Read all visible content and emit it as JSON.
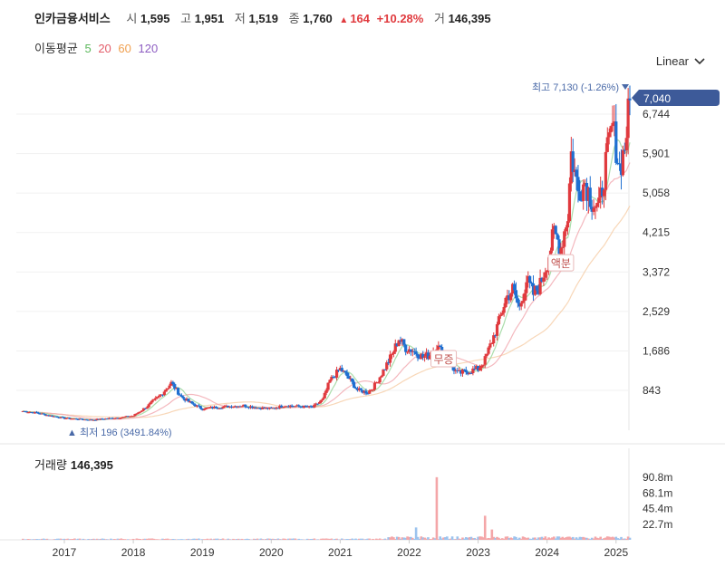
{
  "header": {
    "name": "인카금융서비스",
    "open_label": "시",
    "open": "1,595",
    "high_label": "고",
    "high": "1,951",
    "low_label": "저",
    "low": "1,519",
    "close_label": "종",
    "close": "1,760",
    "change_arrow": "▲",
    "change": "164",
    "change_pct": "+10.28%",
    "volume_label": "거",
    "volume": "146,395"
  },
  "moving_average": {
    "label": "이동평균",
    "periods": [
      {
        "value": "5",
        "color": "#5cb85c"
      },
      {
        "value": "20",
        "color": "#e35d6a"
      },
      {
        "value": "60",
        "color": "#f0a050"
      },
      {
        "value": "120",
        "color": "#8e5ec2"
      }
    ]
  },
  "scale_selector": {
    "value": "Linear"
  },
  "volume_panel": {
    "label": "거래량",
    "value": "146,395"
  },
  "colors": {
    "up": "#e03a3e",
    "down": "#1f6fd1",
    "badge": "#3d5a99"
  },
  "chart_data": {
    "type": "candlestick",
    "y_ticks": [
      "6,744",
      "5,901",
      "5,058",
      "4,215",
      "3,372",
      "2,529",
      "1,686",
      "843"
    ],
    "y_tick_values": [
      6744,
      5901,
      5058,
      4215,
      3372,
      2529,
      1686,
      843
    ],
    "x_ticks": [
      "2017",
      "2018",
      "2019",
      "2020",
      "2021",
      "2022",
      "2023",
      "2024",
      "2025"
    ],
    "x_tick_years": [
      2017,
      2018,
      2019,
      2020,
      2021,
      2022,
      2023,
      2024,
      2025
    ],
    "last_price": "7,040",
    "high_annotation": "최고 7,130 (-1.26%)",
    "low_annotation": "▲ 최저 196 (3491.84%)",
    "event_labels": [
      {
        "text": "무증",
        "date": 2022.5,
        "price": 1500
      },
      {
        "text": "액분",
        "date": 2024.2,
        "price": 3550
      }
    ],
    "volume_ticks": [
      "90.8m",
      "68.1m",
      "45.4m",
      "22.7m"
    ],
    "volume_tick_values": [
      90.8,
      68.1,
      45.4,
      22.7
    ],
    "series_close": [
      [
        2016.4,
        400
      ],
      [
        2016.6,
        360
      ],
      [
        2016.8,
        300
      ],
      [
        2017.0,
        250
      ],
      [
        2017.2,
        230
      ],
      [
        2017.4,
        210
      ],
      [
        2017.6,
        240
      ],
      [
        2017.8,
        260
      ],
      [
        2018.0,
        300
      ],
      [
        2018.2,
        500
      ],
      [
        2018.4,
        750
      ],
      [
        2018.55,
        1000
      ],
      [
        2018.7,
        700
      ],
      [
        2018.85,
        560
      ],
      [
        2019.0,
        450
      ],
      [
        2019.2,
        480
      ],
      [
        2019.4,
        500
      ],
      [
        2019.6,
        520
      ],
      [
        2019.8,
        470
      ],
      [
        2020.0,
        450
      ],
      [
        2020.2,
        520
      ],
      [
        2020.4,
        500
      ],
      [
        2020.6,
        480
      ],
      [
        2020.75,
        650
      ],
      [
        2020.85,
        1050
      ],
      [
        2021.0,
        1300
      ],
      [
        2021.1,
        1150
      ],
      [
        2021.25,
        850
      ],
      [
        2021.4,
        800
      ],
      [
        2021.5,
        950
      ],
      [
        2021.6,
        1200
      ],
      [
        2021.75,
        1600
      ],
      [
        2021.85,
        1950
      ],
      [
        2021.95,
        1750
      ],
      [
        2022.05,
        1700
      ],
      [
        2022.2,
        1550
      ],
      [
        2022.3,
        1600
      ],
      [
        2022.4,
        1800
      ],
      [
        2022.55,
        1500
      ],
      [
        2022.7,
        1200
      ],
      [
        2022.85,
        1250
      ],
      [
        2023.0,
        1300
      ],
      [
        2023.1,
        1500
      ],
      [
        2023.2,
        1900
      ],
      [
        2023.3,
        2300
      ],
      [
        2023.4,
        2800
      ],
      [
        2023.5,
        3000
      ],
      [
        2023.6,
        2600
      ],
      [
        2023.7,
        3200
      ],
      [
        2023.8,
        2900
      ],
      [
        2023.9,
        3100
      ],
      [
        2024.0,
        3600
      ],
      [
        2024.1,
        4200
      ],
      [
        2024.2,
        3900
      ],
      [
        2024.3,
        4600
      ],
      [
        2024.35,
        5900
      ],
      [
        2024.45,
        5100
      ],
      [
        2024.55,
        5300
      ],
      [
        2024.65,
        4900
      ],
      [
        2024.75,
        4700
      ],
      [
        2024.85,
        5700
      ],
      [
        2024.95,
        6500
      ],
      [
        2025.05,
        5600
      ],
      [
        2025.12,
        6000
      ],
      [
        2025.2,
        7040
      ]
    ]
  }
}
